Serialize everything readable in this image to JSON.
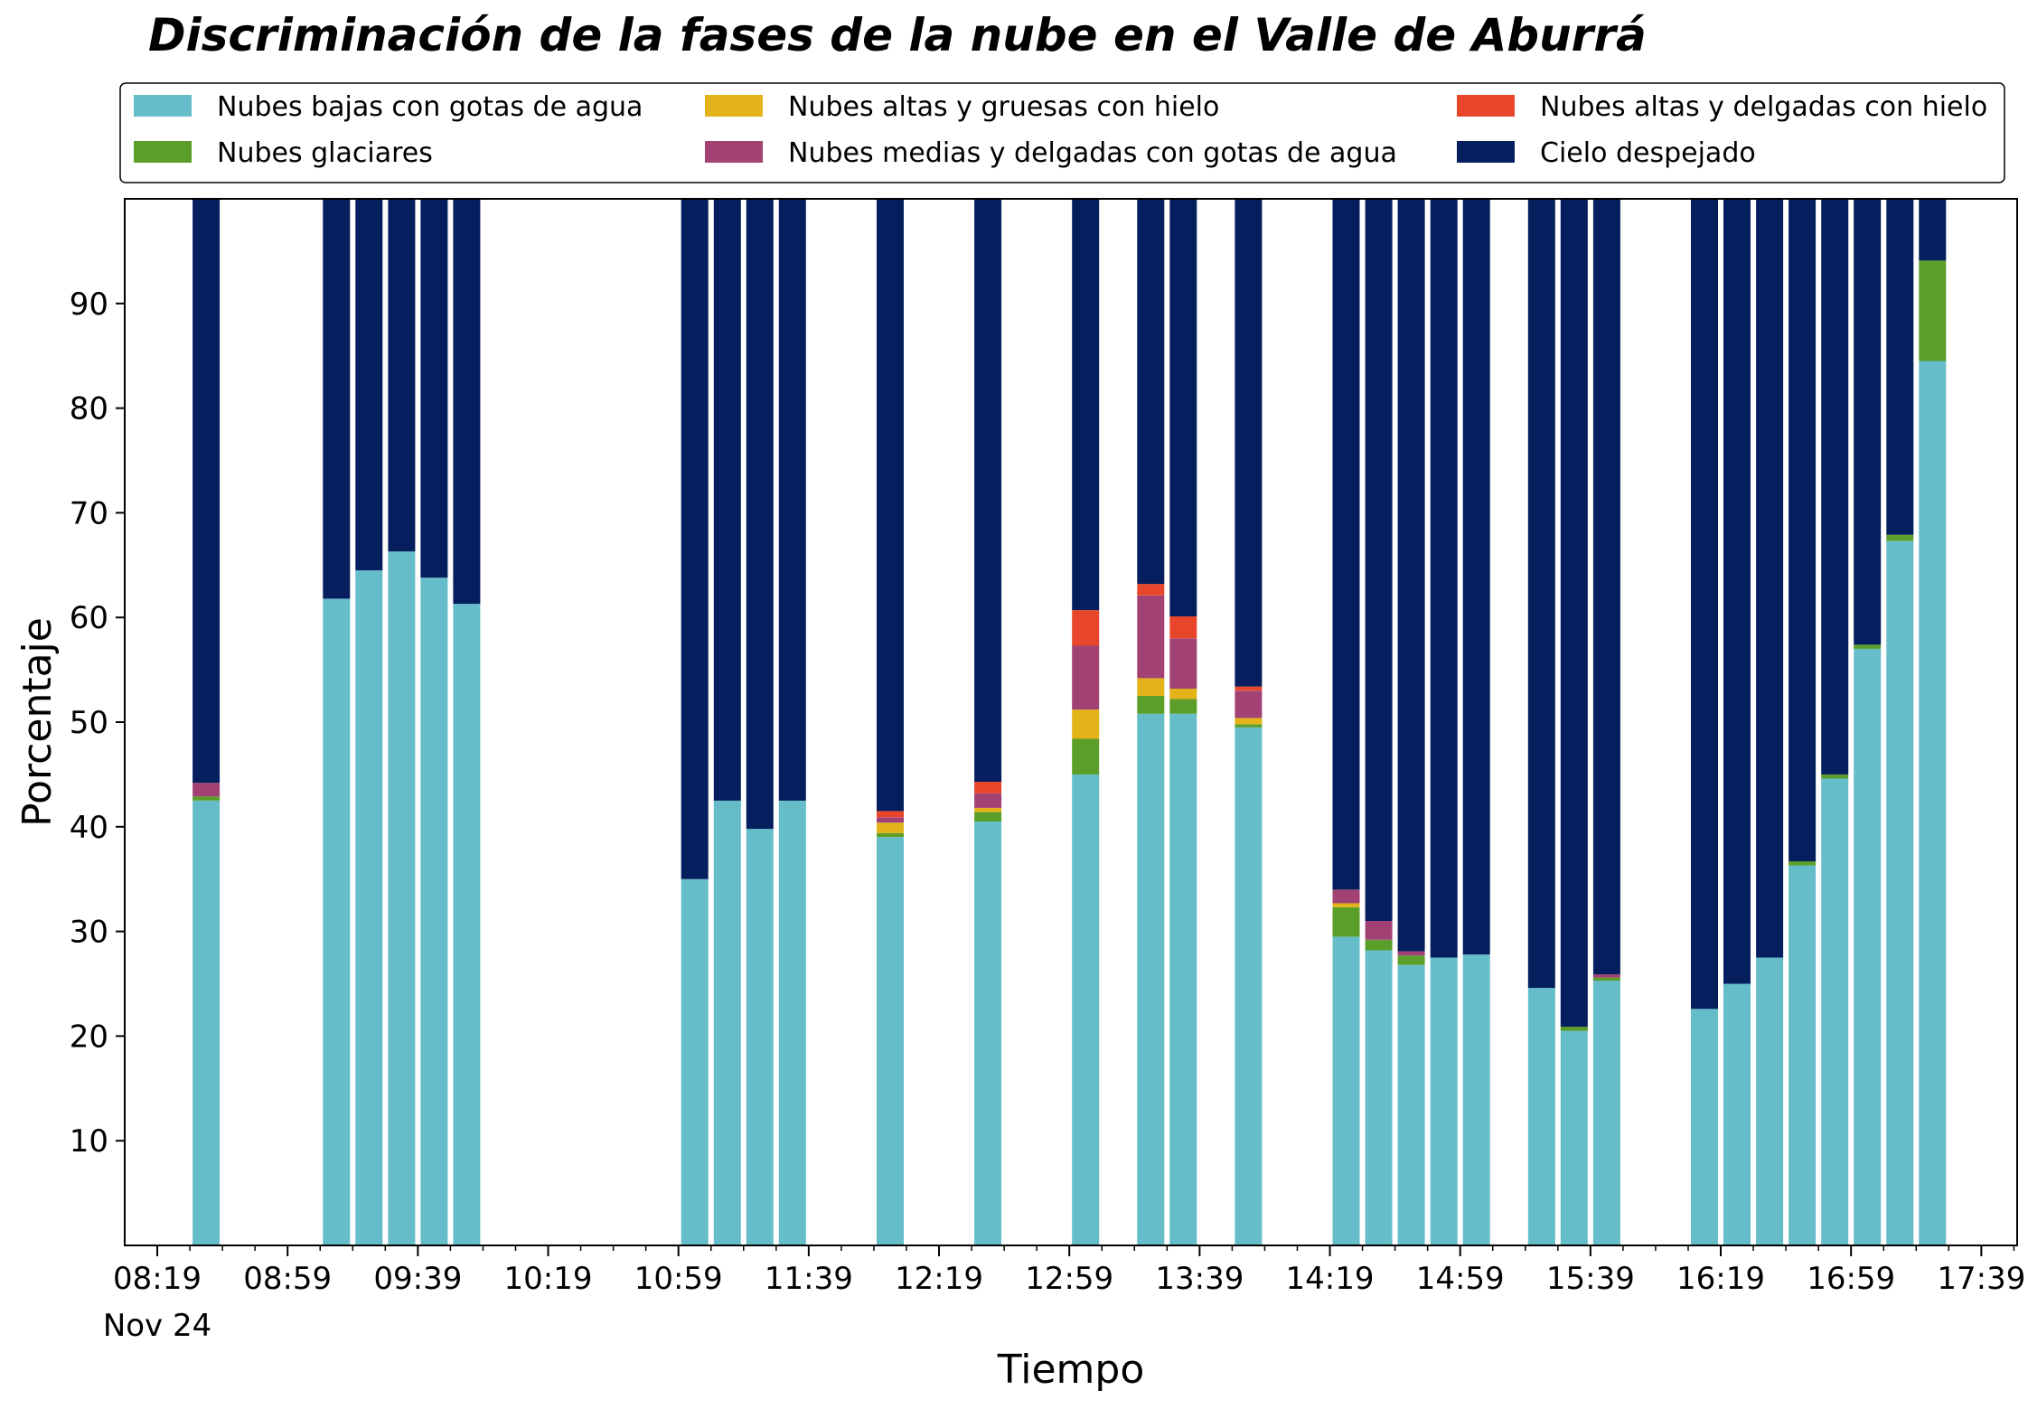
{
  "chart_data": {
    "type": "bar",
    "stacked": true,
    "title": "Discriminación de la fases de la nube en el Valle de Aburrá",
    "xlabel": "Tiempo",
    "ylabel": "Porcentaje",
    "ylim": [
      0,
      100
    ],
    "yticks": [
      10,
      20,
      30,
      40,
      50,
      60,
      70,
      80,
      90
    ],
    "x_range_minutes": [
      489,
      1070
    ],
    "xticks": [
      {
        "minute": 499,
        "label": "08:19",
        "sublabel": "Nov 24"
      },
      {
        "minute": 539,
        "label": "08:59"
      },
      {
        "minute": 579,
        "label": "09:39"
      },
      {
        "minute": 619,
        "label": "10:19"
      },
      {
        "minute": 659,
        "label": "10:59"
      },
      {
        "minute": 699,
        "label": "11:39"
      },
      {
        "minute": 739,
        "label": "12:19"
      },
      {
        "minute": 779,
        "label": "12:59"
      },
      {
        "minute": 819,
        "label": "13:39"
      },
      {
        "minute": 859,
        "label": "14:19"
      },
      {
        "minute": 899,
        "label": "14:59"
      },
      {
        "minute": 939,
        "label": "15:39"
      },
      {
        "minute": 979,
        "label": "16:19"
      },
      {
        "minute": 1019,
        "label": "16:59"
      },
      {
        "minute": 1059,
        "label": "17:39"
      }
    ],
    "legend_position": "top",
    "x": [
      "08:34",
      "09:14",
      "09:24",
      "09:34",
      "09:44",
      "09:54",
      "11:04",
      "11:14",
      "11:24",
      "11:34",
      "12:04",
      "12:34",
      "13:04",
      "13:24",
      "13:34",
      "13:54",
      "14:24",
      "14:34",
      "14:44",
      "14:54",
      "15:04",
      "15:24",
      "15:34",
      "15:44",
      "16:14",
      "16:24",
      "16:34",
      "16:44",
      "16:54",
      "17:04",
      "17:14",
      "17:24"
    ],
    "x_minutes": [
      514,
      554,
      564,
      574,
      584,
      594,
      664,
      674,
      684,
      694,
      724,
      754,
      784,
      804,
      814,
      834,
      864,
      874,
      884,
      894,
      904,
      924,
      934,
      944,
      974,
      984,
      994,
      1004,
      1014,
      1024,
      1034,
      1044
    ],
    "series": [
      {
        "name": "Nubes bajas con gotas de agua",
        "color": "#65bdca",
        "values": [
          42.5,
          61.8,
          64.5,
          66.3,
          63.8,
          61.3,
          35.0,
          42.5,
          39.8,
          42.5,
          39.0,
          40.5,
          45.0,
          50.8,
          50.8,
          49.5,
          29.5,
          28.2,
          26.8,
          27.5,
          27.8,
          24.6,
          20.5,
          25.3,
          22.6,
          25.0,
          27.5,
          36.3,
          44.6,
          57.0,
          67.3,
          84.5
        ]
      },
      {
        "name": "Nubes glaciares",
        "color": "#5b9e2a",
        "values": [
          0.4,
          0,
          0,
          0,
          0,
          0,
          0,
          0,
          0,
          0,
          0.4,
          0.9,
          3.4,
          1.7,
          1.4,
          0.3,
          2.8,
          1.0,
          0.9,
          0,
          0,
          0,
          0.4,
          0.3,
          0,
          0,
          0,
          0.4,
          0.4,
          0.4,
          0.6,
          9.6
        ]
      },
      {
        "name": "Nubes altas y gruesas con hielo",
        "color": "#e2b41a",
        "values": [
          0,
          0,
          0,
          0,
          0,
          0,
          0,
          0,
          0,
          0,
          1.0,
          0.4,
          2.8,
          1.7,
          1.0,
          0.6,
          0.4,
          0,
          0,
          0,
          0,
          0,
          0,
          0,
          0,
          0,
          0,
          0,
          0,
          0,
          0,
          0
        ]
      },
      {
        "name": "Nubes medias y delgadas con gotas de agua",
        "color": "#a24274",
        "values": [
          1.3,
          0,
          0,
          0,
          0,
          0,
          0,
          0,
          0,
          0,
          0.5,
          1.4,
          6.1,
          7.9,
          4.8,
          2.6,
          1.3,
          1.8,
          0.4,
          0,
          0,
          0,
          0,
          0.3,
          0,
          0,
          0,
          0,
          0,
          0,
          0,
          0
        ]
      },
      {
        "name": "Nubes altas y delgadas con hielo",
        "color": "#e8462b",
        "values": [
          0,
          0,
          0,
          0,
          0,
          0,
          0,
          0,
          0,
          0,
          0.6,
          1.1,
          3.4,
          1.1,
          2.1,
          0.4,
          0,
          0,
          0,
          0,
          0,
          0,
          0,
          0,
          0,
          0,
          0,
          0,
          0,
          0,
          0,
          0
        ]
      },
      {
        "name": "Cielo despejado",
        "color": "#041e5e",
        "values": [
          55.8,
          38.2,
          35.5,
          33.7,
          36.2,
          38.7,
          65.0,
          57.5,
          60.2,
          57.5,
          58.5,
          55.7,
          39.3,
          36.8,
          39.9,
          46.6,
          66.0,
          69.0,
          71.9,
          72.5,
          72.2,
          75.4,
          79.1,
          74.1,
          77.4,
          75.0,
          72.5,
          63.3,
          55.0,
          42.6,
          32.1,
          5.9
        ]
      }
    ]
  }
}
